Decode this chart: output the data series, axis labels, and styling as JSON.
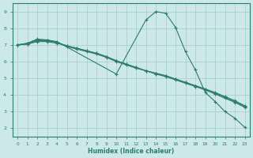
{
  "background_color": "#cce8e8",
  "grid_color": "#aacfcf",
  "line_color": "#2a7d6e",
  "xlabel": "Humidex (Indice chaleur)",
  "xlim": [
    -0.5,
    23.5
  ],
  "ylim": [
    1.5,
    9.5
  ],
  "yticks": [
    2,
    3,
    4,
    5,
    6,
    7,
    8,
    9
  ],
  "xticks": [
    0,
    1,
    2,
    3,
    4,
    5,
    6,
    7,
    8,
    9,
    10,
    11,
    12,
    13,
    14,
    15,
    16,
    17,
    18,
    19,
    20,
    21,
    22,
    23
  ],
  "lines": [
    {
      "x": [
        0,
        1,
        2,
        3,
        4,
        10,
        13,
        14,
        15,
        16,
        17,
        18,
        19,
        20,
        21,
        22,
        23
      ],
      "y": [
        7.0,
        7.1,
        7.35,
        7.3,
        7.2,
        5.25,
        8.5,
        9.0,
        8.9,
        8.05,
        6.6,
        5.5,
        4.15,
        3.6,
        3.0,
        2.6,
        2.05
      ]
    },
    {
      "x": [
        0,
        1,
        2,
        3,
        4,
        5,
        6,
        7,
        8,
        9,
        10,
        11,
        12,
        13,
        14,
        15,
        16,
        17,
        18,
        19,
        20,
        21,
        22,
        23
      ],
      "y": [
        7.0,
        7.05,
        7.2,
        7.2,
        7.1,
        6.95,
        6.8,
        6.65,
        6.5,
        6.3,
        6.05,
        5.85,
        5.65,
        5.45,
        5.25,
        5.1,
        4.9,
        4.7,
        4.5,
        4.3,
        4.05,
        3.8,
        3.55,
        3.25
      ]
    },
    {
      "x": [
        0,
        1,
        2,
        3,
        4,
        5,
        6,
        7,
        8,
        9,
        10,
        11,
        12,
        13,
        14,
        15,
        16,
        17,
        18,
        19,
        20,
        21,
        22,
        23
      ],
      "y": [
        7.0,
        7.05,
        7.25,
        7.25,
        7.15,
        6.95,
        6.8,
        6.65,
        6.5,
        6.3,
        6.05,
        5.85,
        5.65,
        5.45,
        5.3,
        5.15,
        4.95,
        4.75,
        4.55,
        4.35,
        4.1,
        3.85,
        3.6,
        3.3
      ]
    },
    {
      "x": [
        0,
        1,
        2,
        3,
        4,
        5,
        6,
        7,
        8,
        9,
        10,
        11,
        12,
        13,
        14,
        15,
        16,
        17,
        18,
        19,
        20,
        21,
        22,
        23
      ],
      "y": [
        7.0,
        7.1,
        7.3,
        7.3,
        7.15,
        6.9,
        6.75,
        6.6,
        6.45,
        6.25,
        6.0,
        5.8,
        5.6,
        5.45,
        5.3,
        5.15,
        4.95,
        4.75,
        4.55,
        4.35,
        4.15,
        3.9,
        3.65,
        3.35
      ]
    }
  ]
}
